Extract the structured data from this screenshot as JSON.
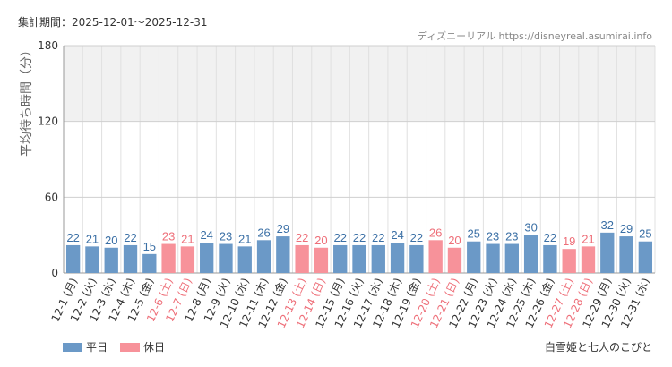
{
  "header": {
    "period": "集計期間：2025-12-01～2025-12-31",
    "source": "ディズニーリアル https://disneyreal.asumirai.info"
  },
  "footer": {
    "legend_weekday": "平日",
    "legend_holiday": "休日",
    "attraction": "白雪姫と七人のこびと"
  },
  "colors": {
    "weekday": "#6b99c7",
    "holiday": "#f7929a",
    "weekday_label": "#3a6fa5",
    "holiday_label": "#ee6f79",
    "band": "#f1f1f1",
    "grid": "#e0e0e0"
  },
  "chart_data": {
    "type": "bar",
    "ylabel": "平均待ち時間（分）",
    "ylim": [
      0,
      180
    ],
    "yticks": [
      0,
      60,
      120,
      180
    ],
    "grid": true,
    "categories": [
      "12-1 (月)",
      "12-2 (火)",
      "12-3 (水)",
      "12-4 (木)",
      "12-5 (金)",
      "12-6 (土)",
      "12-7 (日)",
      "12-8 (月)",
      "12-9 (火)",
      "12-10 (水)",
      "12-11 (木)",
      "12-12 (金)",
      "12-13 (土)",
      "12-14 (日)",
      "12-15 (月)",
      "12-16 (火)",
      "12-17 (水)",
      "12-18 (木)",
      "12-19 (金)",
      "12-20 (土)",
      "12-21 (日)",
      "12-22 (月)",
      "12-23 (火)",
      "12-24 (水)",
      "12-25 (木)",
      "12-26 (金)",
      "12-27 (土)",
      "12-28 (日)",
      "12-29 (月)",
      "12-30 (火)",
      "12-31 (水)"
    ],
    "values": [
      22,
      21,
      20,
      22,
      15,
      23,
      21,
      24,
      23,
      21,
      26,
      29,
      22,
      20,
      22,
      22,
      22,
      24,
      22,
      26,
      20,
      25,
      23,
      23,
      30,
      22,
      19,
      21,
      32,
      29,
      25
    ],
    "holiday": [
      false,
      false,
      false,
      false,
      false,
      true,
      true,
      false,
      false,
      false,
      false,
      false,
      true,
      true,
      false,
      false,
      false,
      false,
      false,
      true,
      true,
      false,
      false,
      false,
      false,
      false,
      true,
      true,
      false,
      false,
      false
    ],
    "series": [
      {
        "name": "平日"
      },
      {
        "name": "休日"
      }
    ]
  }
}
